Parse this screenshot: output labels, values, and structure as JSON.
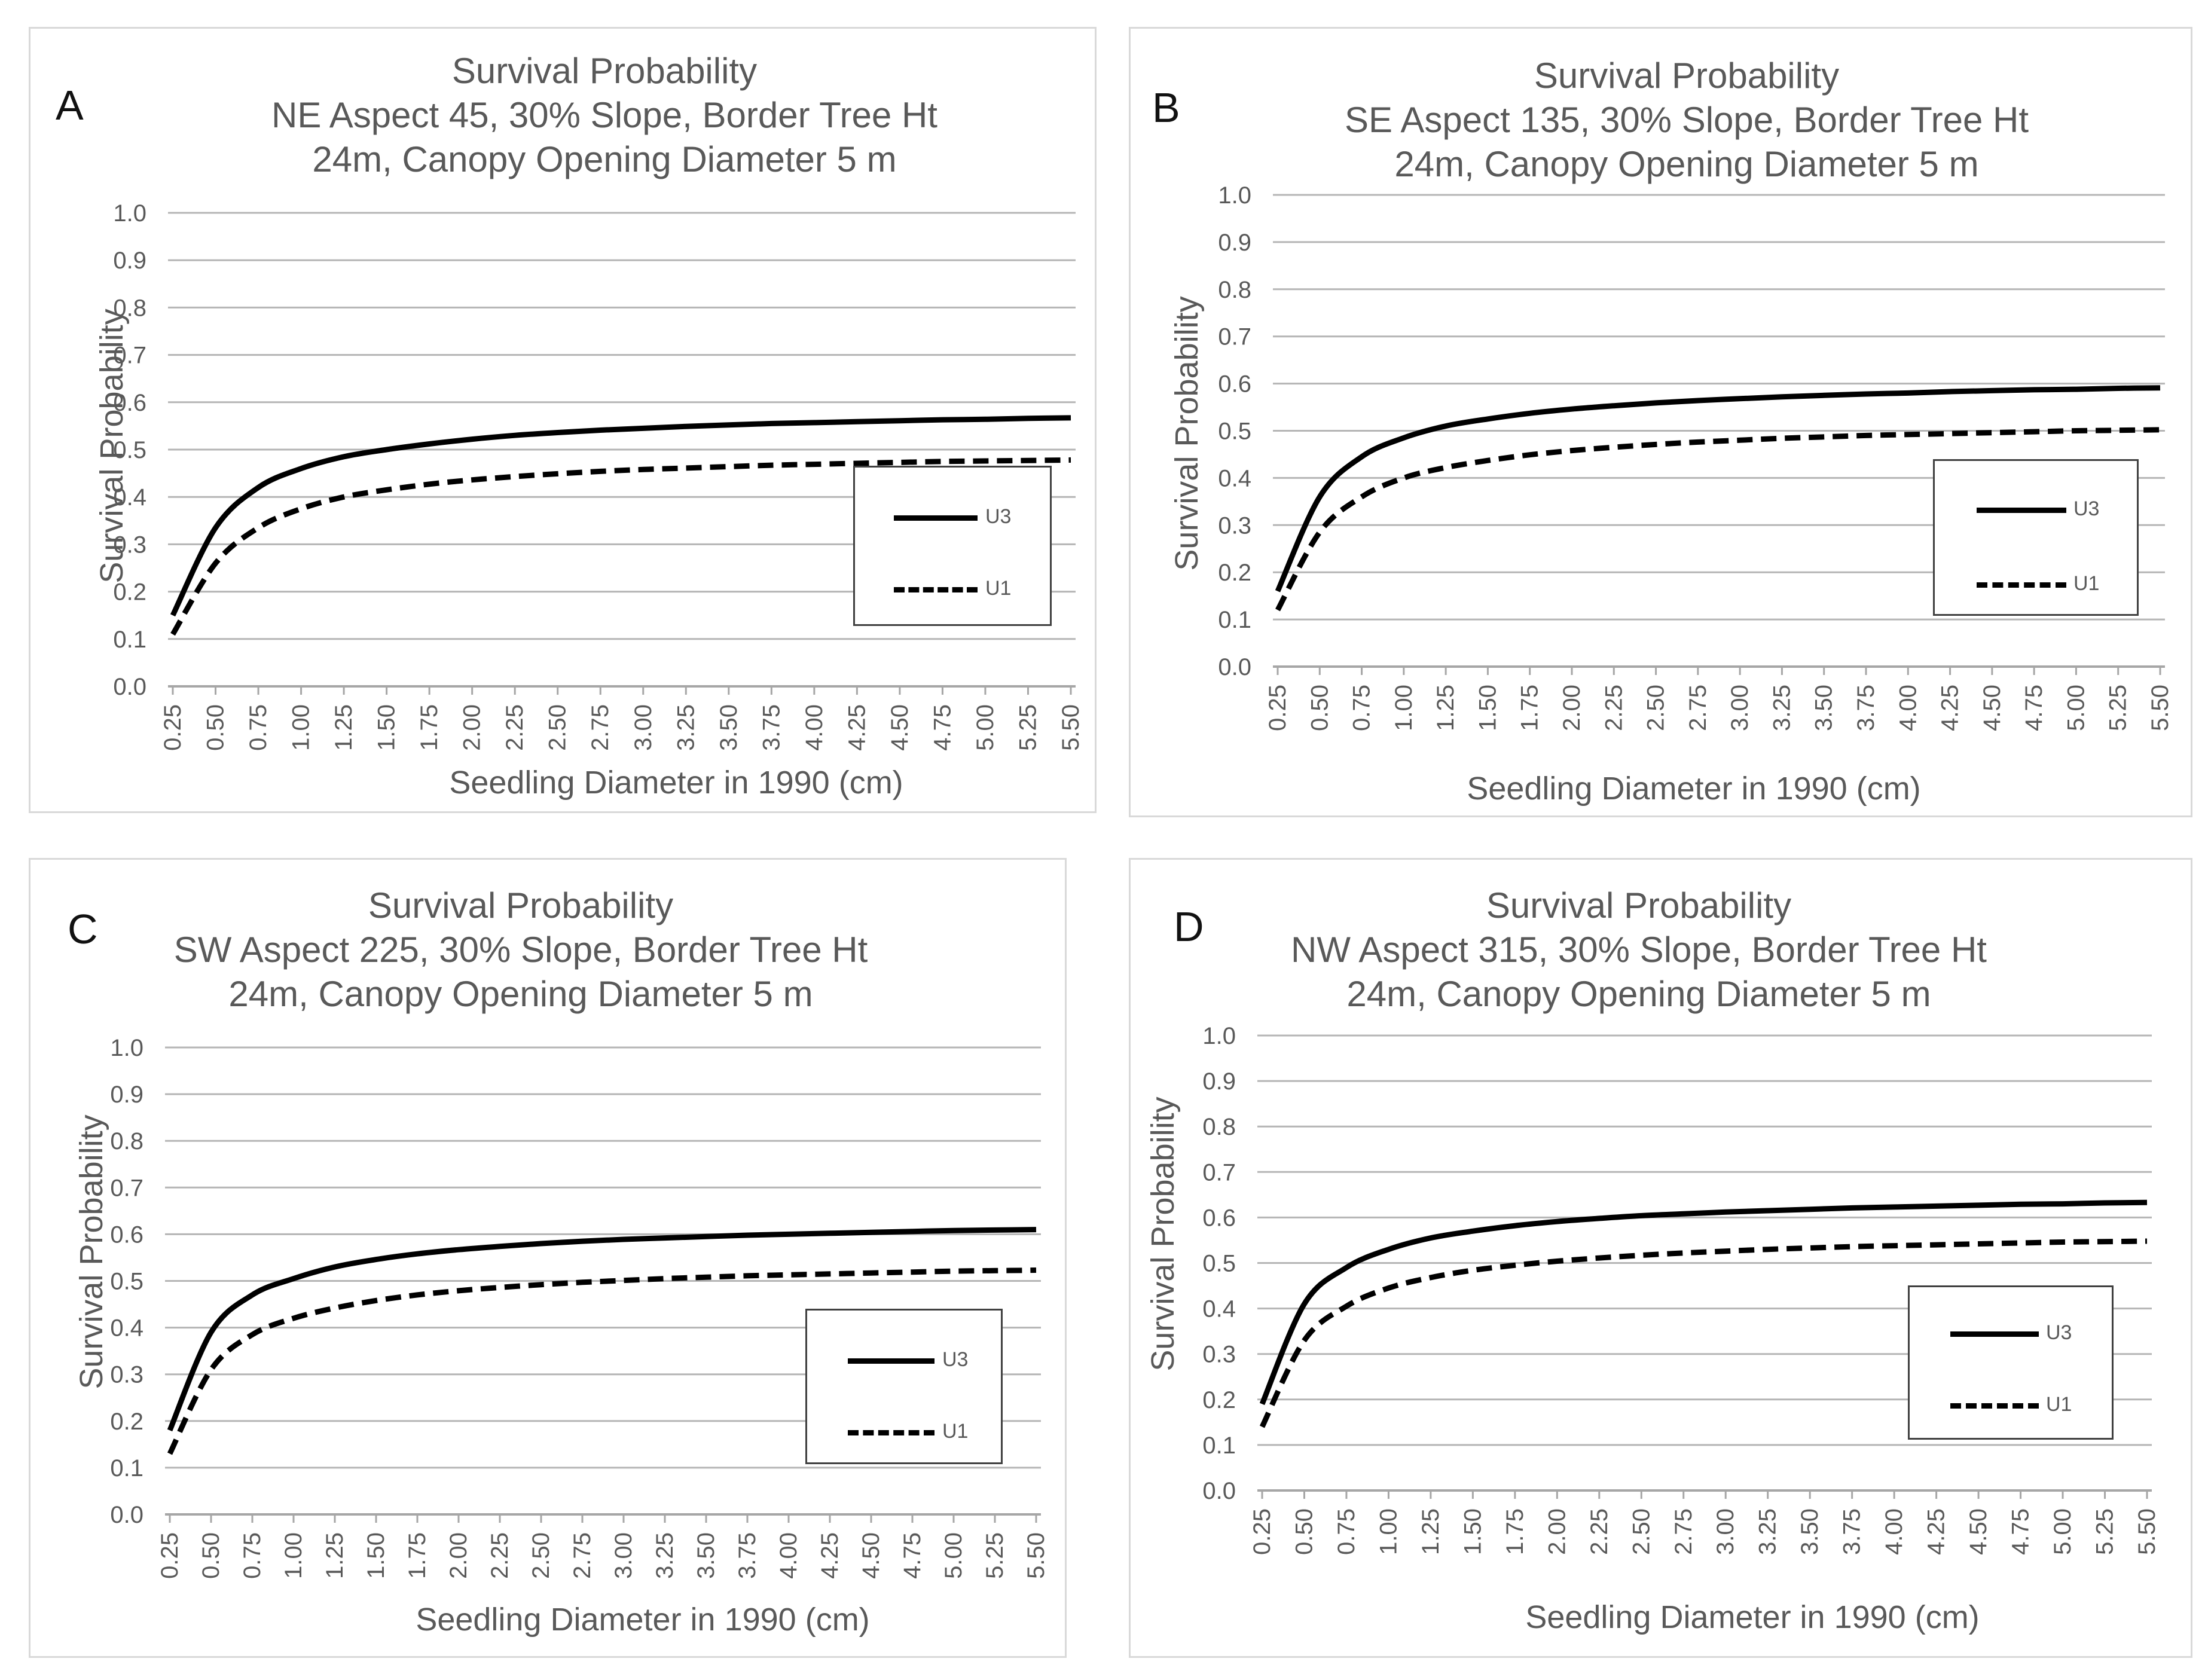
{
  "figure": {
    "panels": [
      {
        "letter": "A",
        "title_lines": [
          "Survival Probability",
          "NE Aspect 45, 30% Slope, Border Tree Ht",
          "24m, Canopy Opening Diameter 5 m"
        ]
      },
      {
        "letter": "B",
        "title_lines": [
          "Survival Probability",
          "SE Aspect 135, 30% Slope, Border Tree Ht",
          "24m, Canopy Opening Diameter 5 m"
        ]
      },
      {
        "letter": "C",
        "title_lines": [
          "Survival Probability",
          "SW Aspect 225, 30% Slope, Border Tree Ht",
          "24m, Canopy Opening Diameter 5 m"
        ]
      },
      {
        "letter": "D",
        "title_lines": [
          "Survival Probability",
          "NW Aspect 315, 30% Slope, Border Tree Ht",
          "24m, Canopy Opening Diameter 5 m"
        ]
      }
    ]
  },
  "chart_data": [
    {
      "type": "line",
      "panel": "A",
      "title": "Survival Probability NE Aspect 45, 30% Slope, Border Tree Ht 24m, Canopy Opening Diameter 5 m",
      "xlabel": "Seedling Diameter in 1990 (cm)",
      "ylabel": "Survival Probability",
      "ylim": [
        0,
        1.0
      ],
      "grid": true,
      "legend": "right",
      "y_ticks": [
        "0.0",
        "0.1",
        "0.2",
        "0.3",
        "0.4",
        "0.5",
        "0.6",
        "0.7",
        "0.8",
        "0.9",
        "1.0"
      ],
      "x_ticks": [
        "0.25",
        "0.50",
        "0.75",
        "1.00",
        "1.25",
        "1.50",
        "1.75",
        "2.00",
        "2.25",
        "2.50",
        "2.75",
        "3.00",
        "3.25",
        "3.50",
        "3.75",
        "4.00",
        "4.25",
        "4.50",
        "4.75",
        "5.00",
        "5.25",
        "5.50"
      ],
      "x": [
        0.25,
        0.5,
        0.75,
        1.0,
        1.25,
        1.5,
        1.75,
        2.0,
        2.25,
        2.5,
        2.75,
        3.0,
        3.25,
        3.5,
        3.75,
        4.0,
        4.25,
        4.5,
        4.75,
        5.0,
        5.25,
        5.5
      ],
      "series": [
        {
          "name": "U3",
          "style": "solid",
          "values": [
            0.15,
            0.335,
            0.42,
            0.46,
            0.485,
            0.5,
            0.512,
            0.522,
            0.53,
            0.536,
            0.541,
            0.545,
            0.549,
            0.552,
            0.555,
            0.557,
            0.559,
            0.561,
            0.563,
            0.564,
            0.566,
            0.567
          ]
        },
        {
          "name": "U1",
          "style": "dashed",
          "values": [
            0.11,
            0.26,
            0.335,
            0.375,
            0.4,
            0.415,
            0.427,
            0.436,
            0.443,
            0.449,
            0.454,
            0.458,
            0.461,
            0.464,
            0.467,
            0.469,
            0.471,
            0.473,
            0.475,
            0.476,
            0.477,
            0.478
          ]
        }
      ]
    },
    {
      "type": "line",
      "panel": "B",
      "title": "Survival Probability SE Aspect 135, 30% Slope, Border Tree Ht 24m, Canopy Opening Diameter 5 m",
      "xlabel": "Seedling Diameter in 1990 (cm)",
      "ylabel": "Survival Probability",
      "ylim": [
        0,
        1.0
      ],
      "grid": true,
      "legend": "right",
      "y_ticks": [
        "0.0",
        "0.1",
        "0.2",
        "0.3",
        "0.4",
        "0.5",
        "0.6",
        "0.7",
        "0.8",
        "0.9",
        "1.0"
      ],
      "x_ticks": [
        "0.25",
        "0.50",
        "0.75",
        "1.00",
        "1.25",
        "1.50",
        "1.75",
        "2.00",
        "2.25",
        "2.50",
        "2.75",
        "3.00",
        "3.25",
        "3.50",
        "3.75",
        "4.00",
        "4.25",
        "4.50",
        "4.75",
        "5.00",
        "5.25",
        "5.50"
      ],
      "x": [
        0.25,
        0.5,
        0.75,
        1.0,
        1.25,
        1.5,
        1.75,
        2.0,
        2.25,
        2.5,
        2.75,
        3.0,
        3.25,
        3.5,
        3.75,
        4.0,
        4.25,
        4.5,
        4.75,
        5.0,
        5.25,
        5.5
      ],
      "series": [
        {
          "name": "U3",
          "style": "solid",
          "values": [
            0.16,
            0.36,
            0.445,
            0.485,
            0.51,
            0.525,
            0.537,
            0.546,
            0.553,
            0.559,
            0.564,
            0.568,
            0.572,
            0.575,
            0.578,
            0.58,
            0.583,
            0.585,
            0.587,
            0.588,
            0.59,
            0.591
          ]
        },
        {
          "name": "U1",
          "style": "dashed",
          "values": [
            0.12,
            0.285,
            0.36,
            0.4,
            0.422,
            0.437,
            0.449,
            0.458,
            0.465,
            0.471,
            0.476,
            0.48,
            0.484,
            0.487,
            0.49,
            0.492,
            0.494,
            0.496,
            0.498,
            0.5,
            0.501,
            0.502
          ]
        }
      ]
    },
    {
      "type": "line",
      "panel": "C",
      "title": "Survival Probability SW Aspect 225, 30% Slope, Border Tree Ht 24m, Canopy Opening Diameter 5 m",
      "xlabel": "Seedling Diameter in 1990 (cm)",
      "ylabel": "Survival Probability",
      "ylim": [
        0,
        1.0
      ],
      "grid": true,
      "legend": "right",
      "y_ticks": [
        "0.0",
        "0.1",
        "0.2",
        "0.3",
        "0.4",
        "0.5",
        "0.6",
        "0.7",
        "0.8",
        "0.9",
        "1.0"
      ],
      "x_ticks": [
        "0.25",
        "0.50",
        "0.75",
        "1.00",
        "1.25",
        "1.50",
        "1.75",
        "2.00",
        "2.25",
        "2.50",
        "2.75",
        "3.00",
        "3.25",
        "3.50",
        "3.75",
        "4.00",
        "4.25",
        "4.50",
        "4.75",
        "5.00",
        "5.25",
        "5.50"
      ],
      "x": [
        0.25,
        0.5,
        0.75,
        1.0,
        1.25,
        1.5,
        1.75,
        2.0,
        2.25,
        2.5,
        2.75,
        3.0,
        3.25,
        3.5,
        3.75,
        4.0,
        4.25,
        4.5,
        4.75,
        5.0,
        5.25,
        5.5
      ],
      "series": [
        {
          "name": "U3",
          "style": "solid",
          "values": [
            0.18,
            0.39,
            0.47,
            0.505,
            0.53,
            0.546,
            0.558,
            0.567,
            0.574,
            0.58,
            0.585,
            0.589,
            0.592,
            0.595,
            0.598,
            0.6,
            0.602,
            0.604,
            0.606,
            0.608,
            0.609,
            0.61
          ]
        },
        {
          "name": "U1",
          "style": "dashed",
          "values": [
            0.13,
            0.31,
            0.385,
            0.42,
            0.442,
            0.458,
            0.47,
            0.479,
            0.486,
            0.492,
            0.497,
            0.501,
            0.505,
            0.508,
            0.511,
            0.513,
            0.515,
            0.517,
            0.519,
            0.521,
            0.522,
            0.523
          ]
        }
      ]
    },
    {
      "type": "line",
      "panel": "D",
      "title": "Survival Probability NW Aspect 315, 30% Slope, Border Tree Ht 24m, Canopy Opening Diameter 5 m",
      "xlabel": "Seedling Diameter in 1990 (cm)",
      "ylabel": "Survival Probability",
      "ylim": [
        0,
        1.0
      ],
      "grid": true,
      "legend": "right",
      "y_ticks": [
        "0.0",
        "0.1",
        "0.2",
        "0.3",
        "0.4",
        "0.5",
        "0.6",
        "0.7",
        "0.8",
        "0.9",
        "1.0"
      ],
      "x_ticks": [
        "0.25",
        "0.50",
        "0.75",
        "1.00",
        "1.25",
        "1.50",
        "1.75",
        "2.00",
        "2.25",
        "2.50",
        "2.75",
        "3.00",
        "3.25",
        "3.50",
        "3.75",
        "4.00",
        "4.25",
        "4.50",
        "4.75",
        "5.00",
        "5.25",
        "5.50"
      ],
      "x": [
        0.25,
        0.5,
        0.75,
        1.0,
        1.25,
        1.5,
        1.75,
        2.0,
        2.25,
        2.5,
        2.75,
        3.0,
        3.25,
        3.5,
        3.75,
        4.0,
        4.25,
        4.5,
        4.75,
        5.0,
        5.25,
        5.5
      ],
      "series": [
        {
          "name": "U3",
          "style": "solid",
          "values": [
            0.19,
            0.41,
            0.49,
            0.53,
            0.555,
            0.57,
            0.582,
            0.591,
            0.598,
            0.604,
            0.608,
            0.612,
            0.615,
            0.618,
            0.621,
            0.623,
            0.625,
            0.627,
            0.629,
            0.63,
            0.632,
            0.633
          ]
        },
        {
          "name": "U1",
          "style": "dashed",
          "values": [
            0.14,
            0.33,
            0.405,
            0.445,
            0.468,
            0.484,
            0.495,
            0.504,
            0.511,
            0.517,
            0.522,
            0.526,
            0.53,
            0.533,
            0.536,
            0.538,
            0.54,
            0.542,
            0.544,
            0.546,
            0.547,
            0.548
          ]
        }
      ]
    }
  ]
}
